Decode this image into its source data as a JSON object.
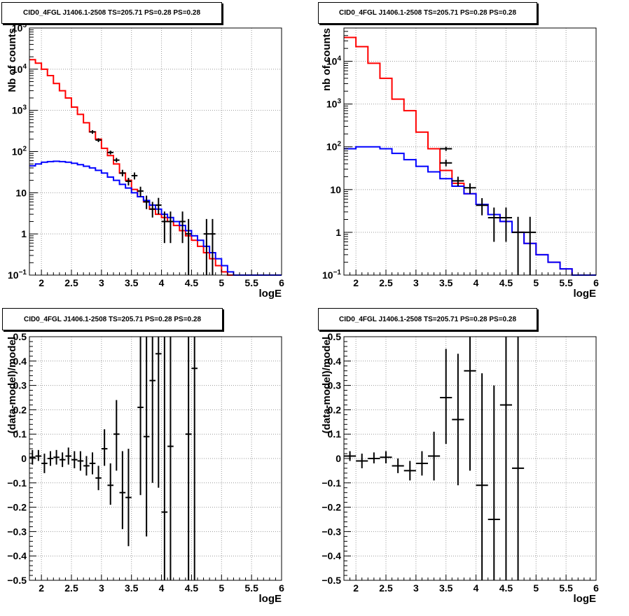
{
  "chart_data": [
    {
      "id": "tl",
      "type": "histogram",
      "title": "CID0_4FGL J1406.1-2508 TS=205.71 PS=0.28 PS=0.28",
      "xlabel": "logE",
      "ylabel": "Nb of counts",
      "xlim": [
        1.8,
        6
      ],
      "ylim": [
        0.1,
        100000
      ],
      "log_y": true,
      "grid": true,
      "x_ticks": [
        "2",
        "2.5",
        "3",
        "3.5",
        "4",
        "4.5",
        "5",
        "5.5",
        "6"
      ],
      "y_ticks": [
        {
          "v": 0.1,
          "base": "10",
          "exp": "−1"
        },
        {
          "v": 1,
          "label": "1"
        },
        {
          "v": 10,
          "label": "10"
        },
        {
          "v": 100,
          "base": "10",
          "exp": "2"
        },
        {
          "v": 1000,
          "base": "10",
          "exp": "3"
        },
        {
          "v": 10000,
          "base": "10",
          "exp": "4"
        },
        {
          "v": 100000,
          "base": "10",
          "exp": "5"
        }
      ],
      "bin_edges": [
        1.8,
        1.9,
        2.0,
        2.1,
        2.2,
        2.3,
        2.4,
        2.5,
        2.6,
        2.7,
        2.8,
        2.9,
        3.0,
        3.1,
        3.2,
        3.3,
        3.4,
        3.5,
        3.6,
        3.7,
        3.8,
        3.9,
        4.0,
        4.1,
        4.2,
        4.3,
        4.4,
        4.5,
        4.6,
        4.7,
        4.8,
        4.9,
        5.0,
        5.1,
        5.2,
        5.3,
        5.4,
        5.5,
        5.6,
        5.7,
        5.8,
        5.9,
        6.0
      ],
      "series": [
        {
          "name": "",
          "color": "#ff0000",
          "kind": "step",
          "values": [
            17000,
            14000,
            10000,
            7000,
            4500,
            3000,
            2000,
            1200,
            800,
            500,
            300,
            200,
            120,
            80,
            50,
            30,
            20,
            12,
            8,
            6,
            4,
            3,
            2.5,
            2,
            1.6,
            1.2,
            0.9,
            0.7,
            0.5,
            0.35,
            0.25,
            0.17,
            0.12,
            0.1,
            0.1,
            0.1,
            0.1,
            0.1,
            0.1,
            0.1,
            0.1,
            0.1
          ]
        },
        {
          "name": "",
          "color": "#0000ff",
          "kind": "step",
          "values": [
            45,
            50,
            55,
            57,
            58,
            57,
            55,
            52,
            48,
            44,
            40,
            35,
            30,
            24,
            20,
            16,
            13,
            10,
            8,
            6.5,
            5,
            4,
            3,
            2.5,
            2,
            1.6,
            1.2,
            0.9,
            0.7,
            0.5,
            0.35,
            0.25,
            0.17,
            0.12,
            0.1,
            0.1,
            0.1,
            0.1,
            0.1,
            0.1,
            0.1,
            0.1
          ]
        },
        {
          "name": "",
          "color": "#000000",
          "kind": "points",
          "points": [
            {
              "x": 2.85,
              "y": 300,
              "xerr": 0.05,
              "lo": 270,
              "hi": 330
            },
            {
              "x": 2.95,
              "y": 190,
              "xerr": 0.05,
              "lo": 170,
              "hi": 210
            },
            {
              "x": 3.15,
              "y": 95,
              "xerr": 0.05,
              "lo": 85,
              "hi": 105
            },
            {
              "x": 3.25,
              "y": 62,
              "xerr": 0.05,
              "lo": 55,
              "hi": 70
            },
            {
              "x": 3.35,
              "y": 30,
              "xerr": 0.05,
              "lo": 25,
              "hi": 36
            },
            {
              "x": 3.45,
              "y": 19,
              "xerr": 0.05,
              "lo": 15,
              "hi": 23
            },
            {
              "x": 3.55,
              "y": 26,
              "xerr": 0.05,
              "lo": 21,
              "hi": 31
            },
            {
              "x": 3.65,
              "y": 11,
              "xerr": 0.05,
              "lo": 8,
              "hi": 14
            },
            {
              "x": 3.75,
              "y": 6,
              "xerr": 0.05,
              "lo": 4,
              "hi": 8.5
            },
            {
              "x": 3.85,
              "y": 4,
              "xerr": 0.05,
              "lo": 2.5,
              "hi": 6
            },
            {
              "x": 3.95,
              "y": 5,
              "xerr": 0.05,
              "lo": 3,
              "hi": 7.5
            },
            {
              "x": 4.05,
              "y": 2,
              "xerr": 0.05,
              "lo": 0.6,
              "hi": 3.5
            },
            {
              "x": 4.15,
              "y": 2,
              "xerr": 0.05,
              "lo": 0.6,
              "hi": 3.5
            },
            {
              "x": 4.35,
              "y": 2,
              "xerr": 0.05,
              "lo": 0.6,
              "hi": 3.5
            },
            {
              "x": 4.45,
              "y": 1,
              "xerr": 0.05,
              "lo": 0.1,
              "hi": 2.3
            },
            {
              "x": 4.75,
              "y": 1,
              "xerr": 0.05,
              "lo": 0.1,
              "hi": 2.3
            },
            {
              "x": 4.85,
              "y": 1,
              "xerr": 0.05,
              "lo": 0.1,
              "hi": 2.3
            }
          ]
        }
      ]
    },
    {
      "id": "tr",
      "type": "histogram",
      "title": "CID0_4FGL J1406.1-2508 TS=205.71 PS=0.28 PS=0.28",
      "xlabel": "logE",
      "ylabel": "nb of counts",
      "xlim": [
        1.8,
        6
      ],
      "ylim": [
        0.1,
        60000
      ],
      "log_y": true,
      "grid": true,
      "x_ticks": [
        "2",
        "2.5",
        "3",
        "3.5",
        "4",
        "4.5",
        "5",
        "5.5",
        "6"
      ],
      "y_ticks": [
        {
          "v": 0.1,
          "base": "10",
          "exp": "−1"
        },
        {
          "v": 1,
          "label": "1"
        },
        {
          "v": 10,
          "label": "10"
        },
        {
          "v": 100,
          "base": "10",
          "exp": "2"
        },
        {
          "v": 1000,
          "base": "10",
          "exp": "3"
        },
        {
          "v": 10000,
          "base": "10",
          "exp": "4"
        }
      ],
      "bin_edges": [
        1.8,
        2.0,
        2.2,
        2.4,
        2.6,
        2.8,
        3.0,
        3.2,
        3.4,
        3.6,
        3.8,
        4.0,
        4.2,
        4.4,
        4.6,
        4.8,
        5.0,
        5.2,
        5.4,
        5.6,
        5.8,
        6.0
      ],
      "series": [
        {
          "name": "",
          "color": "#ff0000",
          "kind": "step",
          "values": [
            36000,
            22000,
            9000,
            4000,
            1300,
            700,
            220,
            90,
            28,
            14,
            8,
            4.5,
            2.6,
            1.8,
            1.0,
            0.55,
            0.3,
            0.2,
            0.14,
            0.1,
            0.1
          ]
        },
        {
          "name": "",
          "color": "#0000ff",
          "kind": "step",
          "values": [
            90,
            100,
            100,
            90,
            70,
            50,
            35,
            26,
            18,
            12,
            8,
            4.5,
            2.6,
            1.8,
            1.0,
            0.55,
            0.3,
            0.2,
            0.14,
            0.1,
            0.1
          ]
        },
        {
          "name": "",
          "color": "#000000",
          "kind": "points",
          "points": [
            {
              "x": 3.5,
              "y": 90,
              "xerr": 0.1,
              "lo": 80,
              "hi": 100
            },
            {
              "x": 3.5,
              "y": 42,
              "xerr": 0.1,
              "lo": 35,
              "hi": 50
            },
            {
              "x": 3.7,
              "y": 16,
              "xerr": 0.1,
              "lo": 12,
              "hi": 20
            },
            {
              "x": 3.9,
              "y": 11,
              "xerr": 0.1,
              "lo": 8,
              "hi": 14
            },
            {
              "x": 4.1,
              "y": 4.3,
              "xerr": 0.1,
              "lo": 2.5,
              "hi": 6.3
            },
            {
              "x": 4.3,
              "y": 2.2,
              "xerr": 0.1,
              "lo": 0.6,
              "hi": 3.8
            },
            {
              "x": 4.5,
              "y": 2.2,
              "xerr": 0.1,
              "lo": 0.6,
              "hi": 3.8
            },
            {
              "x": 4.7,
              "y": 1,
              "xerr": 0.1,
              "lo": 0.1,
              "hi": 2.3
            },
            {
              "x": 4.9,
              "y": 1,
              "xerr": 0.1,
              "lo": 0.1,
              "hi": 2.3
            }
          ]
        }
      ]
    },
    {
      "id": "bl",
      "type": "scatter",
      "title": "CID0_4FGL J1406.1-2508 TS=205.71 PS=0.28 PS=0.28",
      "xlabel": "logE",
      "ylabel": "(data-model)/model",
      "xlim": [
        1.8,
        6
      ],
      "ylim": [
        -0.5,
        0.5
      ],
      "log_y": false,
      "grid": true,
      "x_ticks": [
        "2",
        "2.5",
        "3",
        "3.5",
        "4",
        "4.5",
        "5",
        "5.5",
        "6"
      ],
      "y_ticks": [
        "−0.5",
        "−0.4",
        "−0.3",
        "−0.2",
        "−0.1",
        "0",
        "0.1",
        "0.2",
        "0.3",
        "0.4",
        "0.5"
      ],
      "series": [
        {
          "name": "",
          "color": "#000000",
          "kind": "points",
          "points": [
            {
              "x": 1.85,
              "y": 0.005,
              "xerr": 0.05,
              "lo": -0.025,
              "hi": 0.035
            },
            {
              "x": 1.95,
              "y": 0.01,
              "xerr": 0.05,
              "lo": -0.01,
              "hi": 0.035
            },
            {
              "x": 2.05,
              "y": -0.02,
              "xerr": 0.05,
              "lo": -0.06,
              "hi": 0.02
            },
            {
              "x": 2.15,
              "y": 0.0,
              "xerr": 0.05,
              "lo": -0.03,
              "hi": 0.03
            },
            {
              "x": 2.25,
              "y": 0.005,
              "xerr": 0.05,
              "lo": -0.025,
              "hi": 0.035
            },
            {
              "x": 2.35,
              "y": -0.005,
              "xerr": 0.05,
              "lo": -0.035,
              "hi": 0.025
            },
            {
              "x": 2.45,
              "y": 0.01,
              "xerr": 0.05,
              "lo": -0.025,
              "hi": 0.045
            },
            {
              "x": 2.55,
              "y": -0.005,
              "xerr": 0.05,
              "lo": -0.04,
              "hi": 0.03
            },
            {
              "x": 2.65,
              "y": -0.01,
              "xerr": 0.05,
              "lo": -0.05,
              "hi": 0.03
            },
            {
              "x": 2.75,
              "y": -0.03,
              "xerr": 0.05,
              "lo": -0.07,
              "hi": 0.01
            },
            {
              "x": 2.85,
              "y": -0.02,
              "xerr": 0.05,
              "lo": -0.065,
              "hi": 0.025
            },
            {
              "x": 2.95,
              "y": -0.08,
              "xerr": 0.05,
              "lo": -0.13,
              "hi": -0.03
            },
            {
              "x": 3.05,
              "y": 0.04,
              "xerr": 0.05,
              "lo": -0.03,
              "hi": 0.12
            },
            {
              "x": 3.15,
              "y": -0.11,
              "xerr": 0.05,
              "lo": -0.19,
              "hi": -0.02
            },
            {
              "x": 3.25,
              "y": 0.1,
              "xerr": 0.05,
              "lo": -0.05,
              "hi": 0.24
            },
            {
              "x": 3.35,
              "y": -0.14,
              "xerr": 0.05,
              "lo": -0.29,
              "hi": 0.03
            },
            {
              "x": 3.45,
              "y": -0.16,
              "xerr": 0.05,
              "lo": -0.36,
              "hi": 0.04
            },
            {
              "x": 3.65,
              "y": 0.21,
              "xerr": 0.05,
              "lo": -0.15,
              "hi": 0.5
            },
            {
              "x": 3.75,
              "y": 0.09,
              "xerr": 0.05,
              "lo": -0.32,
              "hi": 0.5
            },
            {
              "x": 3.85,
              "y": 0.32,
              "xerr": 0.05,
              "lo": -0.1,
              "hi": 0.5
            },
            {
              "x": 3.95,
              "y": 0.43,
              "xerr": 0.05,
              "lo": -0.12,
              "hi": 0.5
            },
            {
              "x": 4.05,
              "y": -0.22,
              "xerr": 0.05,
              "lo": -0.5,
              "hi": 0.5
            },
            {
              "x": 4.15,
              "y": 0.05,
              "xerr": 0.05,
              "lo": -0.5,
              "hi": 0.5
            },
            {
              "x": 4.45,
              "y": 0.1,
              "xerr": 0.05,
              "lo": -0.5,
              "hi": 0.5
            },
            {
              "x": 4.55,
              "y": 0.37,
              "xerr": 0.05,
              "lo": -0.5,
              "hi": 0.5
            }
          ]
        }
      ]
    },
    {
      "id": "br",
      "type": "scatter",
      "title": "CID0_4FGL J1406.1-2508 TS=205.71 PS=0.28 PS=0.28",
      "xlabel": "logE",
      "ylabel": "(data-model)/model",
      "xlim": [
        1.8,
        6
      ],
      "ylim": [
        -0.5,
        0.5
      ],
      "log_y": false,
      "grid": true,
      "x_ticks": [
        "2",
        "2.5",
        "3",
        "3.5",
        "4",
        "4.5",
        "5",
        "5.5",
        "6"
      ],
      "y_ticks": [
        "−0.5",
        "−0.4",
        "−0.3",
        "−0.2",
        "−0.1",
        "0",
        "0.1",
        "0.2",
        "0.3",
        "0.4",
        "0.5"
      ],
      "series": [
        {
          "name": "",
          "color": "#000000",
          "kind": "points",
          "points": [
            {
              "x": 1.9,
              "y": 0.01,
              "xerr": 0.1,
              "lo": -0.01,
              "hi": 0.03
            },
            {
              "x": 2.1,
              "y": -0.01,
              "xerr": 0.1,
              "lo": -0.04,
              "hi": 0.02
            },
            {
              "x": 2.3,
              "y": 0.0,
              "xerr": 0.1,
              "lo": -0.02,
              "hi": 0.025
            },
            {
              "x": 2.5,
              "y": 0.005,
              "xerr": 0.1,
              "lo": -0.02,
              "hi": 0.03
            },
            {
              "x": 2.7,
              "y": -0.03,
              "xerr": 0.1,
              "lo": -0.06,
              "hi": 0.0
            },
            {
              "x": 2.9,
              "y": -0.05,
              "xerr": 0.1,
              "lo": -0.09,
              "hi": -0.01
            },
            {
              "x": 3.1,
              "y": -0.02,
              "xerr": 0.1,
              "lo": -0.07,
              "hi": 0.03
            },
            {
              "x": 3.3,
              "y": 0.01,
              "xerr": 0.1,
              "lo": -0.09,
              "hi": 0.11
            },
            {
              "x": 3.5,
              "y": 0.25,
              "xerr": 0.1,
              "lo": 0.06,
              "hi": 0.45
            },
            {
              "x": 3.7,
              "y": 0.16,
              "xerr": 0.1,
              "lo": -0.11,
              "hi": 0.43
            },
            {
              "x": 3.9,
              "y": 0.36,
              "xerr": 0.1,
              "lo": -0.05,
              "hi": 0.5
            },
            {
              "x": 4.1,
              "y": -0.11,
              "xerr": 0.1,
              "lo": -0.5,
              "hi": 0.35
            },
            {
              "x": 4.3,
              "y": -0.25,
              "xerr": 0.1,
              "lo": -0.5,
              "hi": 0.3
            },
            {
              "x": 4.5,
              "y": 0.22,
              "xerr": 0.1,
              "lo": -0.5,
              "hi": 0.5
            },
            {
              "x": 4.7,
              "y": -0.04,
              "xerr": 0.1,
              "lo": -0.5,
              "hi": 0.5
            }
          ]
        }
      ]
    }
  ]
}
